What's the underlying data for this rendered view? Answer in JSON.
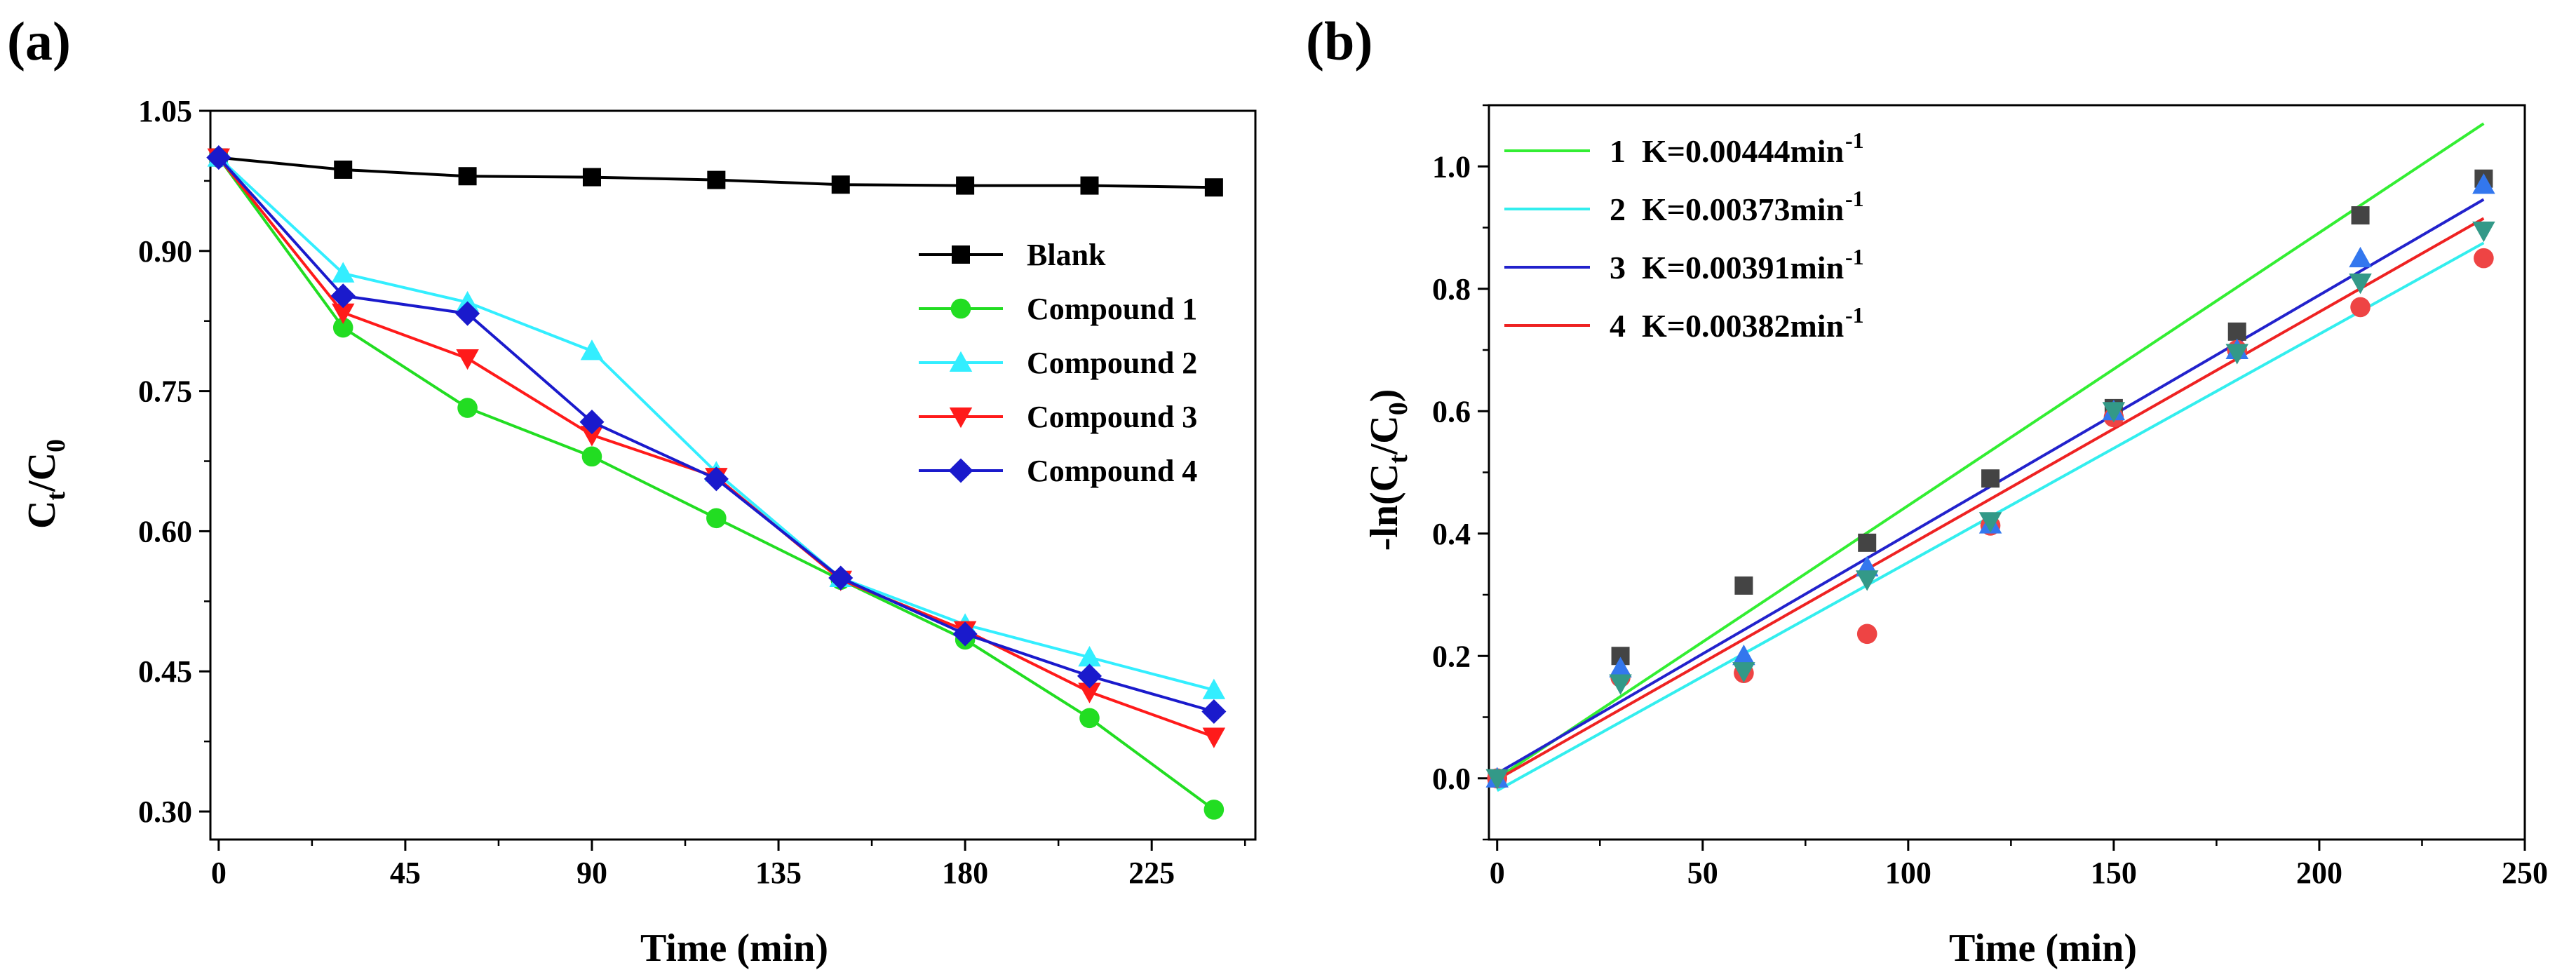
{
  "chart_data": [
    {
      "panel_label": "(a)",
      "type": "line",
      "xlabel": "Time (min)",
      "ylabel": {
        "main": "C",
        "sub1": "t",
        "mid": "/C",
        "sub2": "0"
      },
      "xlim": [
        -2,
        250
      ],
      "ylim": [
        0.27,
        1.05
      ],
      "xticks": [
        0,
        45,
        90,
        135,
        180,
        225
      ],
      "yticks": [
        0.3,
        0.45,
        0.6,
        0.75,
        0.9,
        1.05
      ],
      "ytick_labels": [
        "0.30",
        "0.45",
        "0.60",
        "0.75",
        "0.90",
        "1.05"
      ],
      "grid": false,
      "legend_position": "upper-right",
      "x": [
        0,
        30,
        60,
        90,
        120,
        150,
        180,
        210,
        240
      ],
      "series": [
        {
          "name": "Blank",
          "color": "#000000",
          "marker": "square",
          "values": [
            1.0,
            0.987,
            0.98,
            0.979,
            0.976,
            0.971,
            0.97,
            0.97,
            0.968
          ]
        },
        {
          "name": "Compound 1",
          "color": "#22dd22",
          "marker": "circle",
          "values": [
            1.0,
            0.818,
            0.732,
            0.68,
            0.614,
            0.548,
            0.484,
            0.4,
            0.302
          ]
        },
        {
          "name": "Compound 2",
          "color": "#33eeff",
          "marker": "triangle-up",
          "values": [
            1.0,
            0.876,
            0.845,
            0.793,
            0.663,
            0.55,
            0.5,
            0.465,
            0.43
          ]
        },
        {
          "name": "Compound 3",
          "color": "#ff1a1a",
          "marker": "triangle-down",
          "values": [
            1.0,
            0.834,
            0.785,
            0.703,
            0.658,
            0.548,
            0.494,
            0.428,
            0.38
          ]
        },
        {
          "name": "Compound 4",
          "color": "#1a1acc",
          "marker": "diamond",
          "values": [
            1.0,
            0.852,
            0.833,
            0.717,
            0.656,
            0.55,
            0.49,
            0.445,
            0.407
          ]
        }
      ]
    },
    {
      "panel_label": "(b)",
      "type": "scatter",
      "xlabel": "Time (min)",
      "ylabel": {
        "main": "-ln(C",
        "sub1": "t",
        "mid": "/C",
        "sub2": "0",
        "end": ")"
      },
      "xlim": [
        -2,
        250
      ],
      "ylim": [
        -0.1,
        1.1
      ],
      "xticks": [
        0,
        50,
        100,
        150,
        200,
        250
      ],
      "yticks": [
        0.0,
        0.2,
        0.4,
        0.6,
        0.8,
        1.0
      ],
      "ytick_labels": [
        "0.0",
        "0.2",
        "0.4",
        "0.6",
        "0.8",
        "1.0"
      ],
      "grid": false,
      "legend_position": "upper-left",
      "x": [
        0,
        30,
        60,
        90,
        120,
        150,
        180,
        210,
        240
      ],
      "scatter_series": [
        {
          "color": "#444444",
          "marker": "square",
          "values": [
            0.0,
            0.2,
            0.315,
            0.385,
            0.49,
            0.605,
            0.73,
            0.92,
            0.98
          ]
        },
        {
          "color": "#ee4444",
          "marker": "circle",
          "values": [
            0.0,
            0.165,
            0.172,
            0.236,
            0.413,
            0.59,
            0.7,
            0.77,
            0.85
          ]
        },
        {
          "color": "#3377ee",
          "marker": "triangle-up",
          "values": [
            0.0,
            0.18,
            0.2,
            0.345,
            0.415,
            0.6,
            0.7,
            0.85,
            0.97
          ]
        },
        {
          "color": "#339988",
          "marker": "triangle-down",
          "values": [
            0.0,
            0.155,
            0.175,
            0.325,
            0.42,
            0.6,
            0.695,
            0.81,
            0.895
          ]
        }
      ],
      "fit_lines": [
        {
          "id": "1",
          "k_label": "K=0.00444min",
          "exponent": "-1",
          "color": "#33ee33",
          "x_range": [
            0,
            240
          ],
          "y_range": [
            0.0,
            1.07
          ]
        },
        {
          "id": "2",
          "k_label": "K=0.00373min",
          "exponent": "-1",
          "color": "#33eeee",
          "x_range": [
            0,
            240
          ],
          "y_range": [
            -0.02,
            0.875
          ]
        },
        {
          "id": "3",
          "k_label": "K=0.00391min",
          "exponent": "-1",
          "color": "#2222cc",
          "x_range": [
            0,
            240
          ],
          "y_range": [
            0.008,
            0.946
          ]
        },
        {
          "id": "4",
          "k_label": "K=0.00382min",
          "exponent": "-1",
          "color": "#ee2222",
          "x_range": [
            0,
            240
          ],
          "y_range": [
            -0.002,
            0.915
          ]
        }
      ]
    }
  ]
}
